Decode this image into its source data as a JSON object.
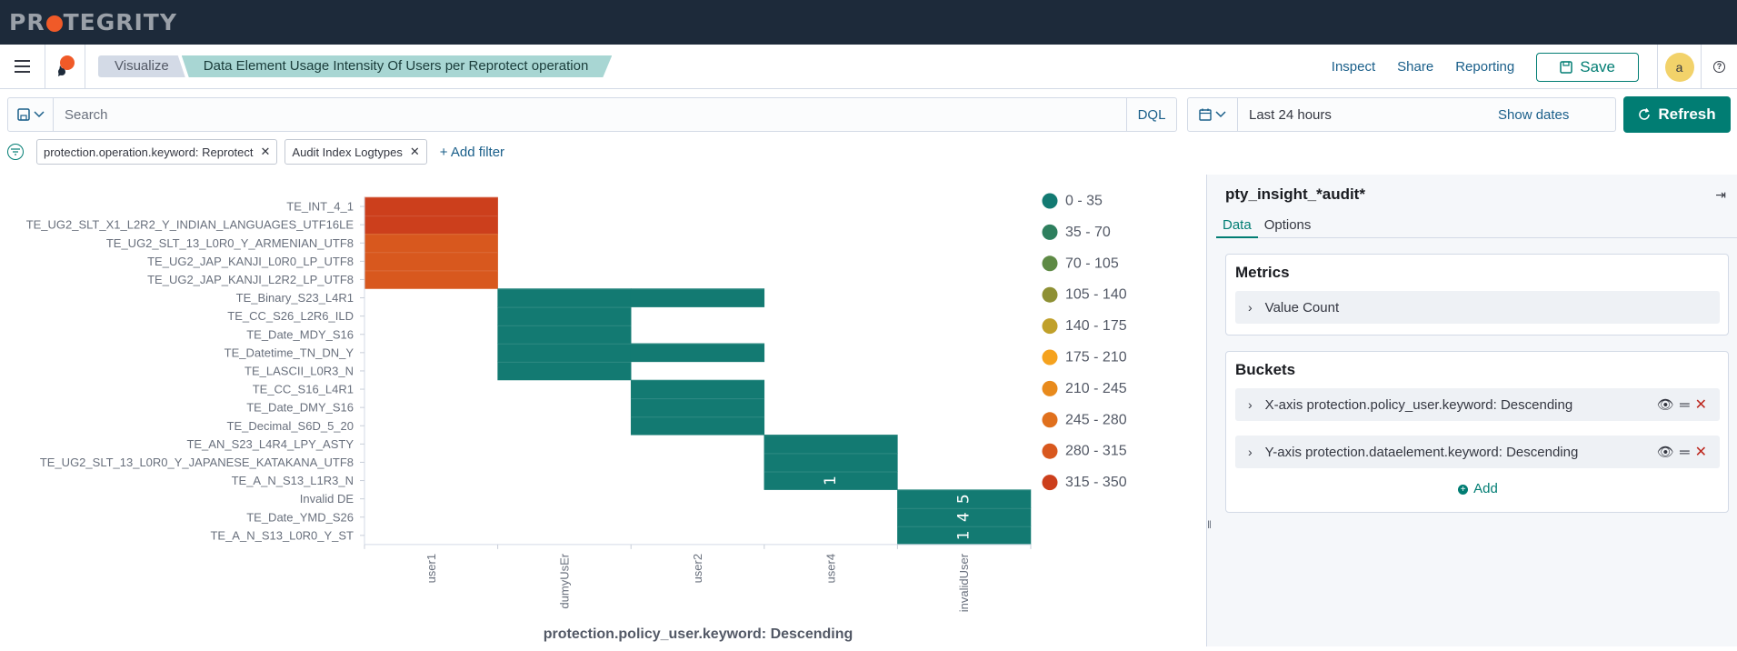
{
  "brand": {
    "logo_pre": "PR",
    "logo_post": "TEGRITY"
  },
  "nav": {
    "breadcrumbs": [
      "Visualize",
      "Data Element Usage Intensity Of Users per Reprotect operation"
    ],
    "inspect": "Inspect",
    "share": "Share",
    "reporting": "Reporting",
    "save": "Save",
    "avatar_initial": "a"
  },
  "query": {
    "placeholder": "Search",
    "language": "DQL",
    "time_range": "Last 24 hours",
    "show_dates": "Show dates",
    "refresh": "Refresh"
  },
  "filters": {
    "pills": [
      "protection.operation.keyword: Reprotect",
      "Audit Index Logtypes"
    ],
    "add_label": "+ Add filter"
  },
  "panel": {
    "index_pattern": "pty_insight_*audit*",
    "tabs": [
      "Data",
      "Options"
    ],
    "metrics_title": "Metrics",
    "metric_item": "Value Count",
    "buckets_title": "Buckets",
    "bucket_items": [
      "X-axis protection.policy_user.keyword: Descending",
      "Y-axis protection.dataelement.keyword: Descending"
    ],
    "add_label": "Add"
  },
  "chart_data": {
    "type": "heatmap",
    "xlabel": "protection.policy_user.keyword: Descending",
    "x": [
      "user1",
      "dumyUsEr",
      "user2",
      "user4",
      "invalidUser"
    ],
    "y": [
      "TE_INT_4_1",
      "TE_UG2_SLT_X1_L2R2_Y_INDIAN_LANGUAGES_UTF16LE",
      "TE_UG2_SLT_13_L0R0_Y_ARMENIAN_UTF8",
      "TE_UG2_JAP_KANJI_L0R0_LP_UTF8",
      "TE_UG2_JAP_KANJI_L2R2_LP_UTF8",
      "TE_Binary_S23_L4R1",
      "TE_CC_S26_L2R6_ILD",
      "TE_Date_MDY_S16",
      "TE_Datetime_TN_DN_Y",
      "TE_LASCII_L0R3_N",
      "TE_CC_S16_L4R1",
      "TE_Date_DMY_S16",
      "TE_Decimal_S6D_5_20",
      "TE_AN_S23_L4R4_LPY_ASTY",
      "TE_UG2_SLT_13_L0R0_Y_JAPANESE_KATAKANA_UTF8",
      "TE_A_N_S13_L1R3_N",
      "Invalid DE",
      "TE_Date_YMD_S26",
      "TE_A_N_S13_L0R0_Y_ST"
    ],
    "cells": [
      {
        "x": "user1",
        "y": "TE_INT_4_1",
        "value": 320
      },
      {
        "x": "user1",
        "y": "TE_UG2_SLT_X1_L2R2_Y_INDIAN_LANGUAGES_UTF16LE",
        "value": 320
      },
      {
        "x": "user1",
        "y": "TE_UG2_SLT_13_L0R0_Y_ARMENIAN_UTF8",
        "value": 290
      },
      {
        "x": "user1",
        "y": "TE_UG2_JAP_KANJI_L0R0_LP_UTF8",
        "value": 290
      },
      {
        "x": "user1",
        "y": "TE_UG2_JAP_KANJI_L2R2_LP_UTF8",
        "value": 290
      },
      {
        "x": "dumyUsEr",
        "y": "TE_Binary_S23_L4R1",
        "value": 10
      },
      {
        "x": "user2",
        "y": "TE_Binary_S23_L4R1",
        "value": 10
      },
      {
        "x": "dumyUsEr",
        "y": "TE_CC_S26_L2R6_ILD",
        "value": 10
      },
      {
        "x": "dumyUsEr",
        "y": "TE_Date_MDY_S16",
        "value": 10
      },
      {
        "x": "dumyUsEr",
        "y": "TE_Datetime_TN_DN_Y",
        "value": 10
      },
      {
        "x": "user2",
        "y": "TE_Datetime_TN_DN_Y",
        "value": 10
      },
      {
        "x": "dumyUsEr",
        "y": "TE_LASCII_L0R3_N",
        "value": 10
      },
      {
        "x": "user2",
        "y": "TE_CC_S16_L4R1",
        "value": 10
      },
      {
        "x": "user2",
        "y": "TE_Date_DMY_S16",
        "value": 10
      },
      {
        "x": "user2",
        "y": "TE_Decimal_S6D_5_20",
        "value": 10
      },
      {
        "x": "user4",
        "y": "TE_AN_S23_L4R4_LPY_ASTY",
        "value": 10
      },
      {
        "x": "user4",
        "y": "TE_UG2_SLT_13_L0R0_Y_JAPANESE_KATAKANA_UTF8",
        "value": 10
      },
      {
        "x": "user4",
        "y": "TE_A_N_S13_L1R3_N",
        "value": 1,
        "label": "1"
      },
      {
        "x": "invalidUser",
        "y": "Invalid DE",
        "value": 5,
        "label": "5"
      },
      {
        "x": "invalidUser",
        "y": "TE_Date_YMD_S26",
        "value": 4,
        "label": "4"
      },
      {
        "x": "invalidUser",
        "y": "TE_A_N_S13_L0R0_Y_ST",
        "value": 1,
        "label": "1"
      }
    ],
    "legend": [
      {
        "label": "0 - 35",
        "color": "#137a72"
      },
      {
        "label": "35 - 70",
        "color": "#2e7f5e"
      },
      {
        "label": "70 - 105",
        "color": "#5e8a45"
      },
      {
        "label": "105 - 140",
        "color": "#8e9034"
      },
      {
        "label": "140 - 175",
        "color": "#c0a02a"
      },
      {
        "label": "175 - 210",
        "color": "#f5a21e"
      },
      {
        "label": "210 - 245",
        "color": "#e88a1c"
      },
      {
        "label": "245 - 280",
        "color": "#e0701d"
      },
      {
        "label": "280 - 315",
        "color": "#d8581e"
      },
      {
        "label": "315 - 350",
        "color": "#cc3f1c"
      }
    ]
  }
}
